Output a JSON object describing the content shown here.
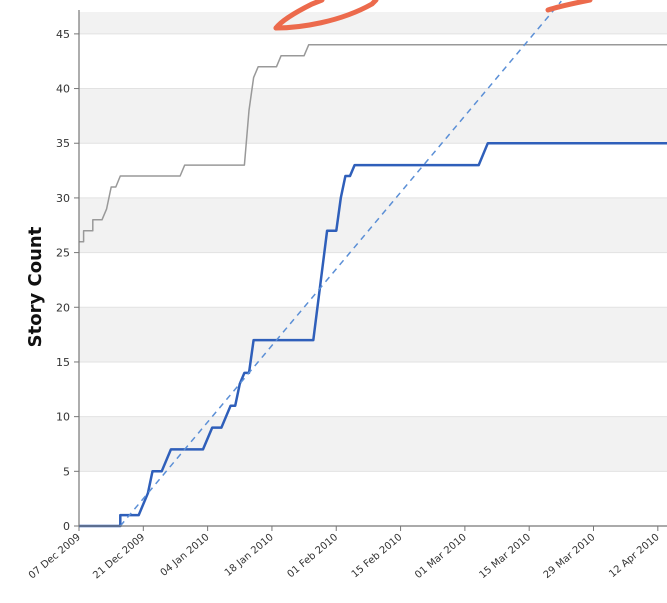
{
  "chart_data": {
    "type": "line",
    "ylabel": "Story Count",
    "xlabel": "",
    "ylim": [
      0,
      47
    ],
    "yticks": [
      0,
      5,
      10,
      15,
      20,
      25,
      30,
      35,
      40,
      45
    ],
    "xtick_labels": [
      "07 Dec 2009",
      "21 Dec 2009",
      "04 Jan 2010",
      "18 Jan 2010",
      "01 Feb 2010",
      "15 Feb 2010",
      "01 Mar 2010",
      "15 Mar 2010",
      "29 Mar 2010",
      "12 Apr 2010"
    ],
    "xlim": [
      "2009-12-07",
      "2010-04-14"
    ],
    "grid": "horizontal bands",
    "series": [
      {
        "style": "solid",
        "color": "#999999",
        "points": [
          [
            "2009-12-07",
            26
          ],
          [
            "2009-12-08",
            26
          ],
          [
            "2009-12-08",
            27
          ],
          [
            "2009-12-10",
            27
          ],
          [
            "2009-12-10",
            28
          ],
          [
            "2009-12-12",
            28
          ],
          [
            "2009-12-13",
            29
          ],
          [
            "2009-12-14",
            31
          ],
          [
            "2009-12-15",
            31
          ],
          [
            "2009-12-16",
            32
          ],
          [
            "2009-12-29",
            32
          ],
          [
            "2009-12-30",
            33
          ],
          [
            "2010-01-12",
            33
          ],
          [
            "2010-01-13",
            38
          ],
          [
            "2010-01-14",
            41
          ],
          [
            "2010-01-15",
            42
          ],
          [
            "2010-01-19",
            42
          ],
          [
            "2010-01-20",
            43
          ],
          [
            "2010-01-25",
            43
          ],
          [
            "2010-01-26",
            44
          ],
          [
            "2010-04-14",
            44
          ]
        ]
      },
      {
        "style": "solid",
        "color": "#2f5fba",
        "points": [
          [
            "2009-12-07",
            0
          ],
          [
            "2009-12-16",
            0
          ],
          [
            "2009-12-16",
            1
          ],
          [
            "2009-12-20",
            1
          ],
          [
            "2009-12-22",
            3
          ],
          [
            "2009-12-23",
            5
          ],
          [
            "2009-12-25",
            5
          ],
          [
            "2009-12-27",
            7
          ],
          [
            "2010-01-03",
            7
          ],
          [
            "2010-01-05",
            9
          ],
          [
            "2010-01-07",
            9
          ],
          [
            "2010-01-09",
            11
          ],
          [
            "2010-01-10",
            11
          ],
          [
            "2010-01-11",
            13
          ],
          [
            "2010-01-12",
            14
          ],
          [
            "2010-01-13",
            14
          ],
          [
            "2010-01-14",
            17
          ],
          [
            "2010-01-27",
            17
          ],
          [
            "2010-01-30",
            27
          ],
          [
            "2010-02-01",
            27
          ],
          [
            "2010-02-02",
            30
          ],
          [
            "2010-02-03",
            32
          ],
          [
            "2010-02-04",
            32
          ],
          [
            "2010-02-05",
            33
          ],
          [
            "2010-03-04",
            33
          ],
          [
            "2010-03-06",
            35
          ],
          [
            "2010-04-14",
            35
          ]
        ]
      },
      {
        "style": "dashed",
        "color": "#5b8fd6",
        "points": [
          [
            "2009-12-16",
            0
          ],
          [
            "2010-03-22",
            48
          ]
        ]
      }
    ]
  },
  "decor": {
    "arrow_color": "#ec6a4c"
  }
}
